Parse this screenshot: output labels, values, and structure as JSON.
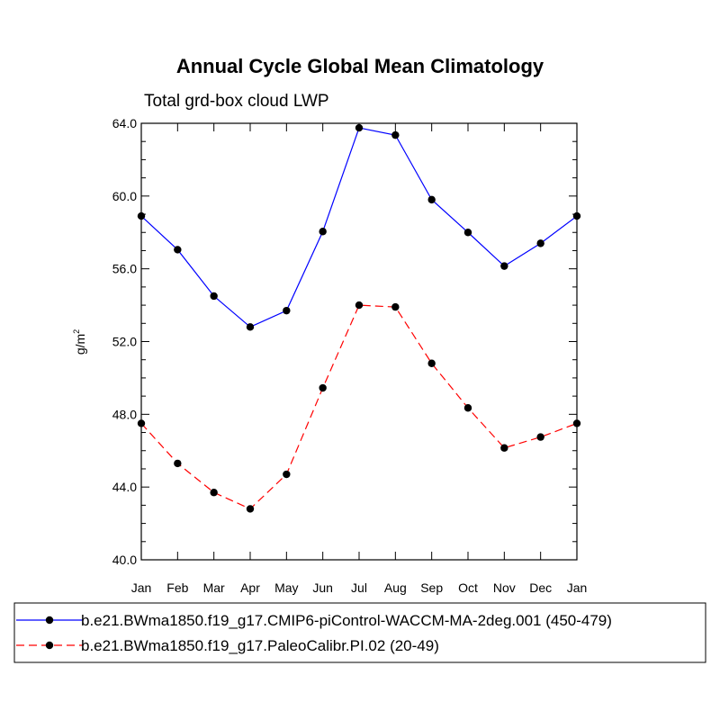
{
  "chart_data": {
    "type": "line",
    "title": "Annual Cycle Global Mean Climatology",
    "subtitle": "Total grd-box cloud LWP",
    "ylabel": "g/m",
    "ylabel_superscript": "2",
    "xlabel": "",
    "categories": [
      "Jan",
      "Feb",
      "Mar",
      "Apr",
      "May",
      "Jun",
      "Jul",
      "Aug",
      "Sep",
      "Oct",
      "Nov",
      "Dec",
      "Jan"
    ],
    "ylim": [
      40.0,
      64.0
    ],
    "yticks": [
      "40.0",
      "44.0",
      "48.0",
      "52.0",
      "56.0",
      "60.0",
      "64.0"
    ],
    "ytick_values": [
      40,
      44,
      48,
      52,
      56,
      60,
      64
    ],
    "grid": false,
    "legend_position": "bottom",
    "series": [
      {
        "name": "b.e21.BWma1850.f19_g17.CMIP6-piControl-WACCM-MA-2deg.001 (450-479)",
        "color": "#0000ff",
        "line_style": "solid",
        "values": [
          58.9,
          57.05,
          54.5,
          52.8,
          53.7,
          58.05,
          63.75,
          63.35,
          59.8,
          58.0,
          56.15,
          57.4,
          58.9
        ]
      },
      {
        "name": "b.e21.BWma1850.f19_g17.PaleoCalibr.PI.02 (20-49)",
        "color": "#ff0000",
        "line_style": "dashed",
        "values": [
          47.5,
          45.3,
          43.7,
          42.8,
          44.7,
          49.45,
          54.0,
          53.9,
          50.8,
          48.35,
          46.15,
          46.75,
          47.5
        ]
      }
    ]
  }
}
